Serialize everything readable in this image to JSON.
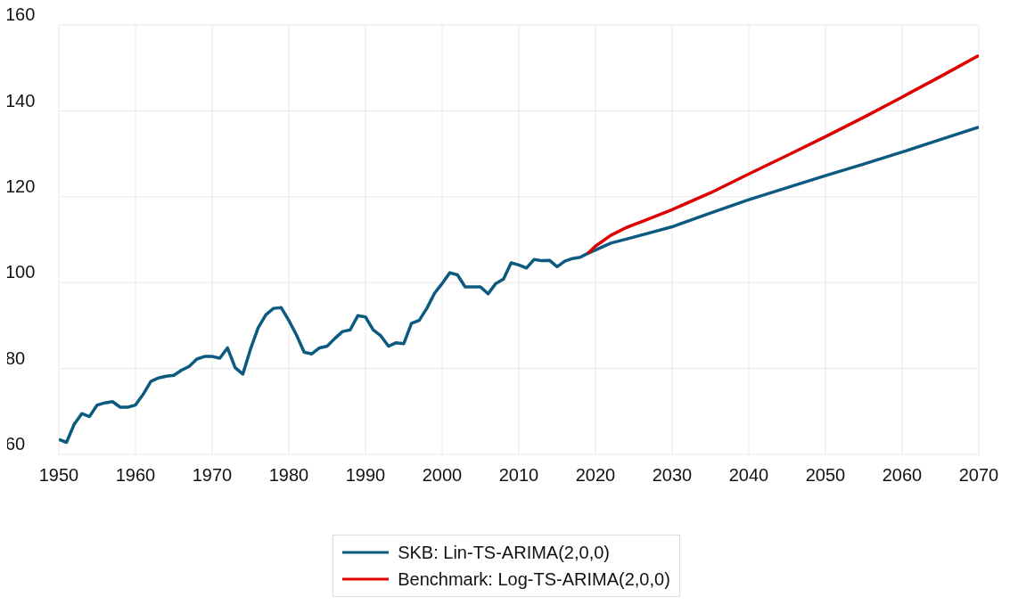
{
  "chart_data": {
    "type": "line",
    "xlim": [
      1950,
      2070
    ],
    "xticks": [
      1950,
      1960,
      1970,
      1980,
      1990,
      2000,
      2010,
      2020,
      2030,
      2040,
      2050,
      2060,
      2070
    ],
    "ylim": [
      60,
      160
    ],
    "yticks": [
      60,
      80,
      100,
      120,
      140,
      160
    ],
    "grid": true,
    "legend": "bottom",
    "marker": "none",
    "series": [
      {
        "name": "SKB: Lin-TS-ARIMA(2,0,0)",
        "color": "#0d5a80",
        "x": [
          1950,
          1951,
          1952,
          1953,
          1954,
          1955,
          1956,
          1957,
          1958,
          1959,
          1960,
          1961,
          1962,
          1963,
          1964,
          1965,
          1966,
          1967,
          1968,
          1969,
          1970,
          1971,
          1972,
          1973,
          1974,
          1975,
          1976,
          1977,
          1978,
          1979,
          1980,
          1981,
          1982,
          1983,
          1984,
          1985,
          1986,
          1987,
          1988,
          1989,
          1990,
          1991,
          1992,
          1993,
          1994,
          1995,
          1996,
          1997,
          1998,
          1999,
          2000,
          2001,
          2002,
          2003,
          2004,
          2005,
          2006,
          2007,
          2008,
          2009,
          2010,
          2011,
          2012,
          2013,
          2014,
          2015,
          2016,
          2017,
          2018,
          2019,
          2020,
          2022,
          2025,
          2030,
          2035,
          2040,
          2045,
          2050,
          2055,
          2060,
          2065,
          2070
        ],
        "values": [
          63.5,
          62.8,
          67,
          69.5,
          68.8,
          71.5,
          72,
          72.3,
          71,
          71,
          71.5,
          74,
          77,
          77.8,
          78.2,
          78.4,
          79.6,
          80.5,
          82.2,
          82.8,
          82.8,
          82.4,
          84.8,
          80.2,
          78.7,
          84.5,
          89.5,
          92.5,
          94,
          94.2,
          91.2,
          87.8,
          83.8,
          83.4,
          84.8,
          85.2,
          87,
          88.6,
          89,
          92.3,
          92,
          89,
          87.6,
          85.2,
          86,
          85.8,
          90.5,
          91.2,
          94,
          97.5,
          99.8,
          102.3,
          101.8,
          99,
          99,
          99,
          97.4,
          99.8,
          100.8,
          104.6,
          104.1,
          103.4,
          105.4,
          105.1,
          105.2,
          103.7,
          105,
          105.6,
          105.9,
          106.8,
          107.6,
          109.2,
          110.6,
          113,
          116.2,
          119.3,
          122.1,
          124.9,
          127.6,
          130.4,
          133.3,
          136.2
        ]
      },
      {
        "name": "Benchmark: Log-TS-ARIMA(2,0,0)",
        "color": "#dd0000",
        "x": [
          2019,
          2020,
          2022,
          2024,
          2026,
          2030,
          2035,
          2040,
          2045,
          2050,
          2055,
          2060,
          2065,
          2070
        ],
        "values": [
          106.8,
          108.5,
          111,
          112.8,
          114.2,
          117,
          120.9,
          125.3,
          129.6,
          134,
          138.5,
          143.2,
          148,
          152.9
        ]
      }
    ]
  }
}
